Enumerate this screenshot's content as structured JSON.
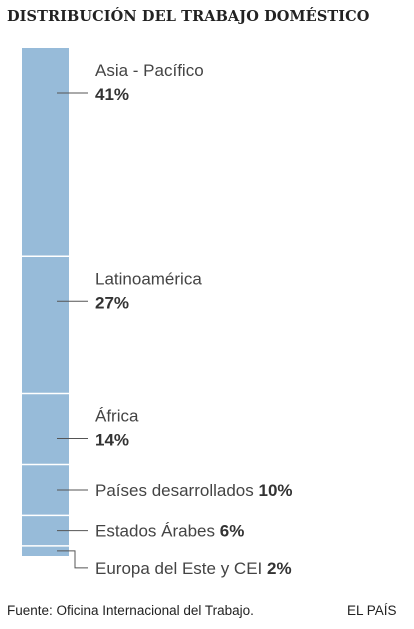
{
  "chart_data": {
    "type": "bar",
    "stacked": true,
    "orientation": "vertical",
    "title": "DISTRIBUCIÓN DEL TRABAJO DOMÉSTICO",
    "unit": "%",
    "categories": [
      "Asia - Pacífico",
      "Latinoamérica",
      "África",
      "Países desarrollados",
      "Estados Árabes",
      "Europa del Este y CEI"
    ],
    "values": [
      41,
      27,
      14,
      10,
      6,
      2
    ],
    "value_labels": [
      "41%",
      "27%",
      "14%",
      "10%",
      "6%",
      "2%"
    ],
    "colors": {
      "bar": "#97bbd9",
      "separator": "#ffffff",
      "leader": "#555555"
    }
  },
  "footer": {
    "source": "Fuente: Oficina Internacional del Trabajo.",
    "brand": "EL PAÍS"
  }
}
